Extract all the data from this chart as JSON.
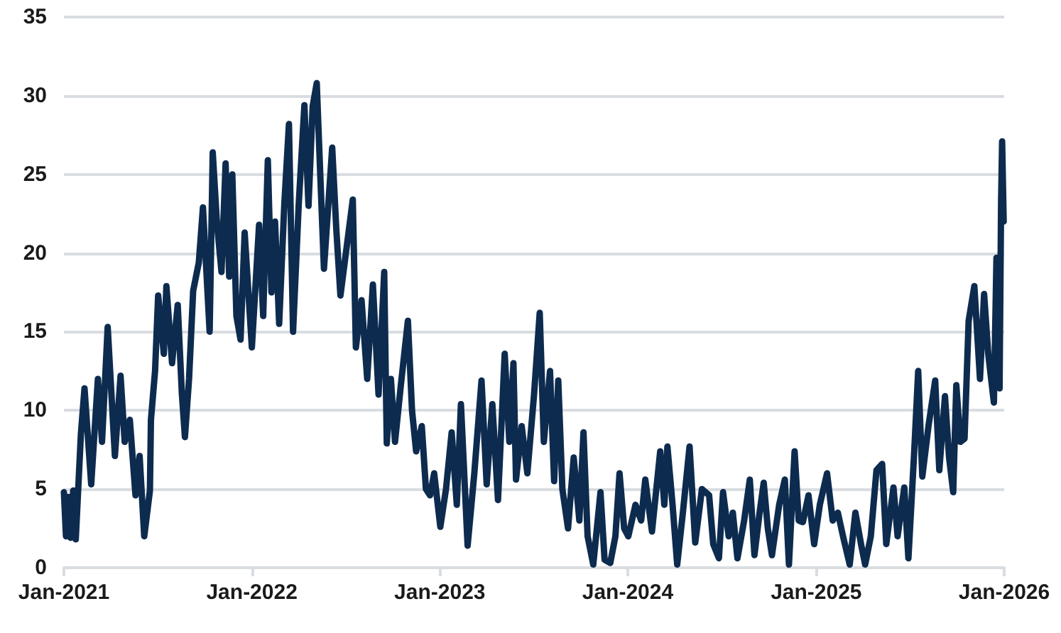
{
  "chart_data": {
    "type": "line",
    "xlim": [
      "2021-01-01",
      "2026-01-01"
    ],
    "xticks": [
      {
        "value": "2021-01-01",
        "label": "Jan-2021"
      },
      {
        "value": "2022-01-01",
        "label": "Jan-2022"
      },
      {
        "value": "2023-01-01",
        "label": "Jan-2023"
      },
      {
        "value": "2024-01-01",
        "label": "Jan-2024"
      },
      {
        "value": "2025-01-01",
        "label": "Jan-2025"
      },
      {
        "value": "2026-01-01",
        "label": "Jan-2026"
      }
    ],
    "ylim": [
      0,
      35
    ],
    "yticks": [
      0,
      5,
      10,
      15,
      20,
      25,
      30,
      35
    ],
    "grid": "y",
    "marker": "none",
    "line_style": "solid",
    "series": [
      {
        "color": "#0d2b4e",
        "x": [
          "2021-01-01",
          "2021-01-05",
          "2021-01-09",
          "2021-01-14",
          "2021-01-19",
          "2021-01-24",
          "2021-02-03",
          "2021-02-10",
          "2021-02-23",
          "2021-03-08",
          "2021-03-16",
          "2021-03-27",
          "2021-04-10",
          "2021-04-21",
          "2021-04-29",
          "2021-05-09",
          "2021-05-20",
          "2021-05-28",
          "2021-06-06",
          "2021-06-17",
          "2021-06-19",
          "2021-06-27",
          "2021-07-03",
          "2021-07-14",
          "2021-07-19",
          "2021-07-30",
          "2021-08-10",
          "2021-08-18",
          "2021-08-24",
          "2021-09-01",
          "2021-09-09",
          "2021-09-20",
          "2021-09-28",
          "2021-10-11",
          "2021-10-17",
          "2021-10-25",
          "2021-11-03",
          "2021-11-11",
          "2021-11-18",
          "2021-11-24",
          "2021-12-02",
          "2021-12-10",
          "2021-12-18",
          "2022-01-01",
          "2022-01-15",
          "2022-01-23",
          "2022-02-01",
          "2022-02-08",
          "2022-02-15",
          "2022-02-23",
          "2022-03-05",
          "2022-03-14",
          "2022-03-22",
          "2022-04-02",
          "2022-04-13",
          "2022-04-21",
          "2022-04-29",
          "2022-05-07",
          "2022-05-15",
          "2022-05-21",
          "2022-06-06",
          "2022-06-14",
          "2022-06-22",
          "2022-07-16",
          "2022-07-22",
          "2022-08-02",
          "2022-08-13",
          "2022-08-24",
          "2022-09-04",
          "2022-09-15",
          "2022-09-20",
          "2022-09-28",
          "2022-10-06",
          "2022-10-17",
          "2022-10-31",
          "2022-11-08",
          "2022-11-16",
          "2022-11-27",
          "2022-12-05",
          "2022-12-13",
          "2022-12-21",
          "2023-01-02",
          "2023-01-13",
          "2023-01-24",
          "2023-02-03",
          "2023-02-11",
          "2023-02-24",
          "2023-03-09",
          "2023-03-23",
          "2023-04-02",
          "2023-04-13",
          "2023-04-24",
          "2023-05-07",
          "2023-05-16",
          "2023-05-24",
          "2023-05-29",
          "2023-06-09",
          "2023-06-20",
          "2023-07-03",
          "2023-07-14",
          "2023-07-22",
          "2023-08-03",
          "2023-08-11",
          "2023-08-19",
          "2023-08-27",
          "2023-09-07",
          "2023-09-18",
          "2023-09-29",
          "2023-10-07",
          "2023-10-15",
          "2023-10-26",
          "2023-11-09",
          "2023-11-17",
          "2023-11-28",
          "2023-12-08",
          "2023-12-16",
          "2023-12-25",
          "2024-01-02",
          "2024-01-16",
          "2024-01-27",
          "2024-02-04",
          "2024-02-17",
          "2024-03-04",
          "2024-03-12",
          "2024-03-18",
          "2024-03-28",
          "2024-04-06",
          "2024-04-17",
          "2024-04-30",
          "2024-05-11",
          "2024-05-24",
          "2024-06-07",
          "2024-06-15",
          "2024-06-26",
          "2024-07-04",
          "2024-07-15",
          "2024-07-23",
          "2024-08-01",
          "2024-08-14",
          "2024-08-25",
          "2024-09-03",
          "2024-09-13",
          "2024-09-21",
          "2024-09-29",
          "2024-10-07",
          "2024-10-21",
          "2024-11-01",
          "2024-11-09",
          "2024-11-20",
          "2024-11-28",
          "2024-12-06",
          "2024-12-17",
          "2024-12-28",
          "2025-01-08",
          "2025-01-22",
          "2025-02-02",
          "2025-02-12",
          "2025-02-22",
          "2025-03-07",
          "2025-03-18",
          "2025-03-29",
          "2025-04-06",
          "2025-04-17",
          "2025-04-28",
          "2025-05-09",
          "2025-05-17",
          "2025-05-31",
          "2025-06-08",
          "2025-06-21",
          "2025-06-29",
          "2025-07-10",
          "2025-07-18",
          "2025-07-26",
          "2025-08-07",
          "2025-08-20",
          "2025-08-28",
          "2025-09-08",
          "2025-09-16",
          "2025-09-24",
          "2025-09-30",
          "2025-10-08",
          "2025-10-16",
          "2025-10-24",
          "2025-11-04",
          "2025-11-15",
          "2025-11-23",
          "2025-12-01",
          "2025-12-12",
          "2025-12-17",
          "2025-12-23",
          "2025-12-26",
          "2025-12-28",
          "2025-12-31"
        ],
        "values": [
          4.8,
          2.0,
          4.5,
          1.9,
          4.9,
          1.8,
          8.5,
          11.4,
          5.3,
          12.0,
          8.0,
          15.3,
          7.1,
          12.2,
          8.0,
          9.4,
          4.6,
          7.1,
          2.0,
          4.9,
          9.4,
          12.5,
          17.3,
          13.6,
          17.9,
          13.0,
          16.7,
          11.1,
          8.3,
          12.0,
          17.6,
          19.4,
          22.9,
          15.0,
          26.4,
          22.0,
          18.8,
          25.7,
          18.5,
          25.0,
          16.0,
          14.5,
          21.3,
          14.0,
          21.8,
          16.0,
          25.9,
          17.5,
          22.0,
          15.5,
          23.1,
          28.2,
          15.0,
          23.1,
          29.4,
          23.0,
          29.3,
          30.8,
          24.0,
          19.0,
          26.7,
          21.5,
          17.3,
          23.4,
          14.0,
          17.0,
          12.0,
          18.0,
          11.0,
          18.8,
          7.9,
          12.0,
          8.0,
          11.5,
          15.7,
          10.0,
          7.4,
          9.0,
          5.0,
          4.6,
          6.0,
          2.6,
          5.0,
          8.6,
          4.0,
          10.4,
          1.4,
          6.0,
          11.9,
          5.3,
          10.4,
          4.3,
          13.6,
          8.0,
          13.0,
          5.6,
          9.0,
          6.0,
          11.0,
          16.2,
          8.0,
          12.5,
          5.5,
          11.9,
          5.0,
          2.5,
          7.0,
          3.0,
          8.6,
          2.0,
          0.2,
          4.8,
          0.5,
          0.3,
          2.0,
          6.0,
          2.5,
          2.0,
          4.0,
          3.0,
          5.6,
          2.3,
          7.4,
          4.0,
          7.7,
          4.0,
          0.2,
          3.5,
          7.7,
          1.6,
          5.0,
          4.6,
          1.5,
          0.6,
          4.8,
          2.0,
          3.5,
          0.6,
          3.0,
          5.6,
          0.8,
          3.5,
          5.4,
          2.5,
          0.8,
          4.0,
          5.6,
          0.2,
          7.4,
          3.0,
          2.9,
          4.6,
          1.5,
          4.0,
          6.0,
          3.0,
          3.5,
          2.0,
          0.2,
          3.5,
          1.5,
          0.2,
          2.0,
          6.2,
          6.6,
          1.5,
          5.1,
          2.0,
          5.1,
          0.6,
          7.2,
          12.5,
          5.8,
          9.0,
          11.9,
          6.2,
          10.9,
          7.0,
          4.8,
          11.6,
          8.0,
          8.2,
          15.7,
          17.9,
          12.0,
          17.4,
          13.6,
          10.5,
          19.7,
          11.4,
          23.2,
          27.1,
          22.0
        ]
      }
    ]
  }
}
